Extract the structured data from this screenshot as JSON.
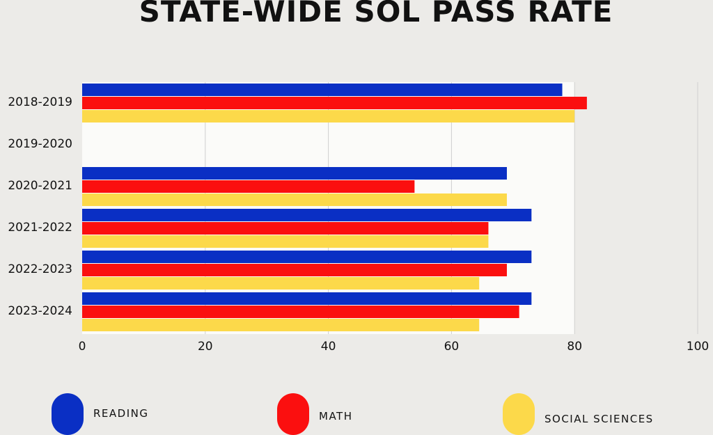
{
  "chart_data": {
    "type": "bar",
    "orientation": "horizontal",
    "title": "STATE-WIDE SOL PASS RATE",
    "categories": [
      "2018-2019",
      "2019-2020",
      "2020-2021",
      "2021-2022",
      "2022-2023",
      "2023-2024"
    ],
    "series": [
      {
        "name": "READING",
        "color": "#0a2fc4",
        "values": [
          78,
          null,
          69,
          73,
          73,
          73
        ]
      },
      {
        "name": "MATH",
        "color": "#fb0f0f",
        "values": [
          82,
          null,
          54,
          66,
          69,
          71
        ]
      },
      {
        "name": "SOCIAL SCIENCES",
        "color": "#fcd94a",
        "values": [
          80,
          null,
          69,
          66,
          64.5,
          64.5
        ]
      }
    ],
    "xticks": [
      "0",
      "20",
      "40",
      "60",
      "80",
      "100"
    ],
    "xlim": [
      0,
      100
    ],
    "grid": true,
    "legend": "bottom"
  }
}
